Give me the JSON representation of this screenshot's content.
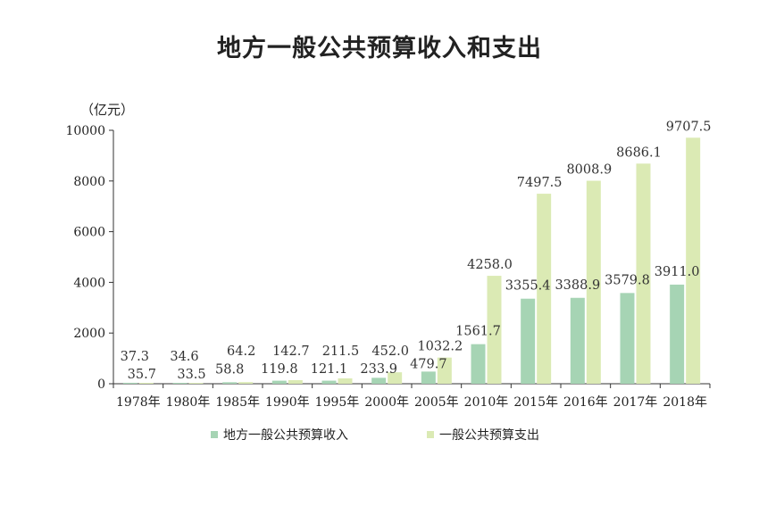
{
  "title": "地方一般公共预算收入和支出",
  "unit_label": "（亿元）",
  "colors": {
    "income": "#a6d4b4",
    "expenditure": "#dbeab4",
    "axis": "#333333"
  },
  "chart_data": {
    "type": "bar",
    "title": "地方一般公共预算收入和支出",
    "ylabel": "（亿元）",
    "ylim": [
      0,
      10000
    ],
    "yticks": [
      "0",
      "2000",
      "4000",
      "6000",
      "8000",
      "10000"
    ],
    "categories": [
      "1978年",
      "1980年",
      "1985年",
      "1990年",
      "1995年",
      "2000年",
      "2005年",
      "2010年",
      "2015年",
      "2016年",
      "2017年",
      "2018年"
    ],
    "series": [
      {
        "name": "地方一般公共预算收入",
        "values": [
          37.3,
          34.6,
          58.8,
          119.8,
          121.1,
          233.9,
          479.7,
          1561.7,
          3355.4,
          3388.9,
          3579.8,
          3911.0
        ],
        "labels": [
          "37.3",
          "34.6",
          "58.8",
          "119.8",
          "121.1",
          "233.9",
          "479.7",
          "1561.7",
          "3355.4",
          "3388.9",
          "3579.8",
          "3911.0"
        ]
      },
      {
        "name": "一般公共预算支出",
        "values": [
          35.7,
          33.5,
          64.2,
          142.7,
          211.5,
          452.0,
          1032.2,
          4258.0,
          7497.5,
          8008.9,
          8686.1,
          9707.5
        ],
        "labels": [
          "35.7",
          "33.5",
          "64.2",
          "142.7",
          "211.5",
          "452.0",
          "1032.2",
          "4258.0",
          "7497.5",
          "8008.9",
          "8686.1",
          "9707.5"
        ]
      }
    ],
    "grid": false,
    "legend_position": "bottom"
  }
}
